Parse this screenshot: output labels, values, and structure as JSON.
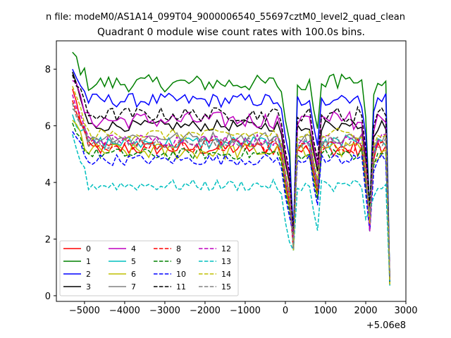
{
  "chart_data": {
    "type": "line",
    "suptitle": "n file: modeM0/AS1A14_099T04_9000006540_55697cztM0_level2_quad_clean",
    "title": "Quadrant 0 module wise count rates with 100.0s bins.",
    "xlabel": "",
    "ylabel": "",
    "offset_label": "+5.06e8",
    "xlim": [
      -5700,
      3000
    ],
    "ylim": [
      -0.2,
      9.0
    ],
    "x_ticks": [
      -5000,
      -4000,
      -3000,
      -2000,
      -1000,
      0,
      1000,
      2000,
      3000
    ],
    "x_tick_labels": [
      "−5000",
      "−4000",
      "−3000",
      "−2000",
      "−1000",
      "0",
      "1000",
      "2000",
      "3000"
    ],
    "y_ticks": [
      0,
      2,
      4,
      6,
      8
    ],
    "y_tick_labels": [
      "0",
      "2",
      "4",
      "6",
      "8"
    ],
    "grid": false,
    "legend": "lower-left",
    "x_start": -5300,
    "x_step": 100,
    "gap_after_index": 52,
    "series": [
      {
        "name": "0",
        "color": "#ff0000",
        "dash": "solid",
        "level": 5.2,
        "wiggle": 0.25,
        "start": 7.3
      },
      {
        "name": "1",
        "color": "#008000",
        "dash": "solid",
        "level": 7.5,
        "wiggle": 0.3,
        "start": 8.6
      },
      {
        "name": "2",
        "color": "#0000ff",
        "dash": "solid",
        "level": 6.9,
        "wiggle": 0.25,
        "start": 8.0
      },
      {
        "name": "3",
        "color": "#000000",
        "dash": "solid",
        "level": 6.0,
        "wiggle": 0.2,
        "start": 7.9
      },
      {
        "name": "4",
        "color": "#bf00bf",
        "dash": "solid",
        "level": 6.2,
        "wiggle": 0.3,
        "start": 7.6
      },
      {
        "name": "5",
        "color": "#00bfbf",
        "dash": "solid",
        "level": 5.4,
        "wiggle": 0.25,
        "start": 6.4
      },
      {
        "name": "6",
        "color": "#bfbf00",
        "dash": "solid",
        "level": 5.1,
        "wiggle": 0.3,
        "start": 6.2
      },
      {
        "name": "7",
        "color": "#808080",
        "dash": "solid",
        "level": 5.6,
        "wiggle": 0.2,
        "start": 6.6
      },
      {
        "name": "8",
        "color": "#ff0000",
        "dash": "dashed",
        "level": 5.3,
        "wiggle": 0.25,
        "start": 6.9
      },
      {
        "name": "9",
        "color": "#008000",
        "dash": "dashed",
        "level": 5.0,
        "wiggle": 0.2,
        "start": 6.1
      },
      {
        "name": "10",
        "color": "#0000ff",
        "dash": "dashed",
        "level": 4.8,
        "wiggle": 0.2,
        "start": 5.8
      },
      {
        "name": "11",
        "color": "#000000",
        "dash": "dashed",
        "level": 6.4,
        "wiggle": 0.25,
        "start": 7.8
      },
      {
        "name": "12",
        "color": "#bf00bf",
        "dash": "dashed",
        "level": 5.5,
        "wiggle": 0.2,
        "start": 7.1
      },
      {
        "name": "13",
        "color": "#00bfbf",
        "dash": "dashed",
        "level": 3.9,
        "wiggle": 0.2,
        "start": 5.7
      },
      {
        "name": "14",
        "color": "#bfbf00",
        "dash": "dashed",
        "level": 5.7,
        "wiggle": 0.2,
        "start": 7.4
      },
      {
        "name": "15",
        "color": "#808080",
        "dash": "dashed",
        "level": 5.4,
        "wiggle": 0.2,
        "start": 6.8
      }
    ]
  }
}
